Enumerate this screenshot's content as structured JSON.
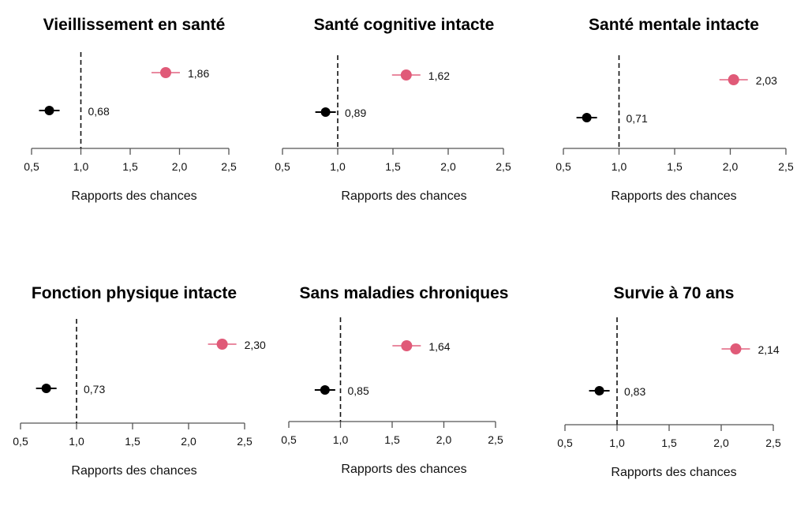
{
  "chart_data": [
    {
      "type": "scatter",
      "title": "Vieillissement en santé",
      "xlabel": "Rapports des chances",
      "xlim": [
        0.5,
        2.5
      ],
      "reference_line": 1.0,
      "ticks": [
        "0,5",
        "1,0",
        "1,5",
        "2,0",
        "2,5"
      ],
      "points": [
        {
          "value": 1.86,
          "label": "1,86",
          "color": "#e05a78"
        },
        {
          "value": 0.68,
          "label": "0,68",
          "color": "#000000"
        }
      ]
    },
    {
      "type": "scatter",
      "title": "Santé cognitive intacte",
      "xlabel": "Rapports des chances",
      "xlim": [
        0.5,
        2.5
      ],
      "reference_line": 1.0,
      "ticks": [
        "0,5",
        "1,0",
        "1,5",
        "2,0",
        "2,5"
      ],
      "points": [
        {
          "value": 1.62,
          "label": "1,62",
          "color": "#e05a78"
        },
        {
          "value": 0.89,
          "label": "0,89",
          "color": "#000000"
        }
      ]
    },
    {
      "type": "scatter",
      "title": "Santé mentale intacte",
      "xlabel": "Rapports des chances",
      "xlim": [
        0.5,
        2.5
      ],
      "reference_line": 1.0,
      "ticks": [
        "0,5",
        "1,0",
        "1,5",
        "2,0",
        "2,5"
      ],
      "points": [
        {
          "value": 2.03,
          "label": "2,03",
          "color": "#e05a78"
        },
        {
          "value": 0.71,
          "label": "0,71",
          "color": "#000000"
        }
      ]
    },
    {
      "type": "scatter",
      "title": "Fonction physique intacte",
      "xlabel": "Rapports des chances",
      "xlim": [
        0.5,
        2.5
      ],
      "reference_line": 1.0,
      "ticks": [
        "0,5",
        "1,0",
        "1,5",
        "2,0",
        "2,5"
      ],
      "points": [
        {
          "value": 2.3,
          "label": "2,30",
          "color": "#e05a78"
        },
        {
          "value": 0.73,
          "label": "0,73",
          "color": "#000000"
        }
      ]
    },
    {
      "type": "scatter",
      "title": "Sans maladies chroniques",
      "xlabel": "Rapports des chances",
      "xlim": [
        0.5,
        2.5
      ],
      "reference_line": 1.0,
      "ticks": [
        "0,5",
        "1,0",
        "1,5",
        "2,0",
        "2,5"
      ],
      "points": [
        {
          "value": 1.64,
          "label": "1,64",
          "color": "#e05a78"
        },
        {
          "value": 0.85,
          "label": "0,85",
          "color": "#000000"
        }
      ]
    },
    {
      "type": "scatter",
      "title": "Survie à 70 ans",
      "xlabel": "Rapports des chances",
      "xlim": [
        0.5,
        2.5
      ],
      "reference_line": 1.0,
      "ticks": [
        "0,5",
        "1,0",
        "1,5",
        "2,0",
        "2,5"
      ],
      "points": [
        {
          "value": 2.14,
          "label": "2,14",
          "color": "#e05a78"
        },
        {
          "value": 0.83,
          "label": "0,83",
          "color": "#000000"
        }
      ]
    }
  ]
}
